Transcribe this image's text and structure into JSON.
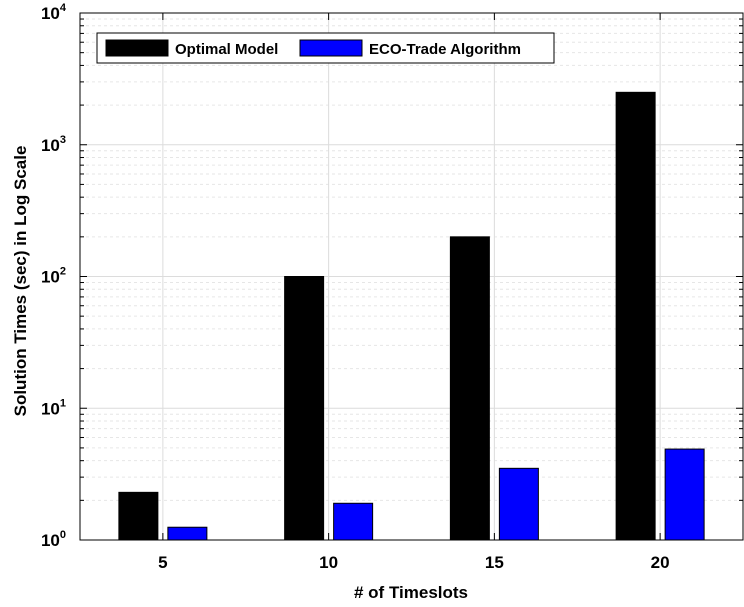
{
  "chart_data": {
    "type": "bar",
    "title": "",
    "xlabel": "#  of Timeslots",
    "ylabel": "Solution Times (sec) in Log Scale",
    "yscale": "log",
    "ylim": [
      1,
      10000
    ],
    "grid": true,
    "legend_position": "top-left",
    "categories": [
      "5",
      "10",
      "15",
      "20"
    ],
    "ytick_labels": [
      {
        "base": "10",
        "exp": "0"
      },
      {
        "base": "10",
        "exp": "1"
      },
      {
        "base": "10",
        "exp": "2"
      },
      {
        "base": "10",
        "exp": "3"
      },
      {
        "base": "10",
        "exp": "4"
      }
    ],
    "series": [
      {
        "name": "Optimal Model",
        "color": "#000000",
        "values": [
          2.3,
          100,
          200,
          2500
        ]
      },
      {
        "name": "ECO-Trade Algorithm",
        "color": "#0000ff",
        "values": [
          1.25,
          1.9,
          3.5,
          4.9
        ]
      }
    ]
  }
}
